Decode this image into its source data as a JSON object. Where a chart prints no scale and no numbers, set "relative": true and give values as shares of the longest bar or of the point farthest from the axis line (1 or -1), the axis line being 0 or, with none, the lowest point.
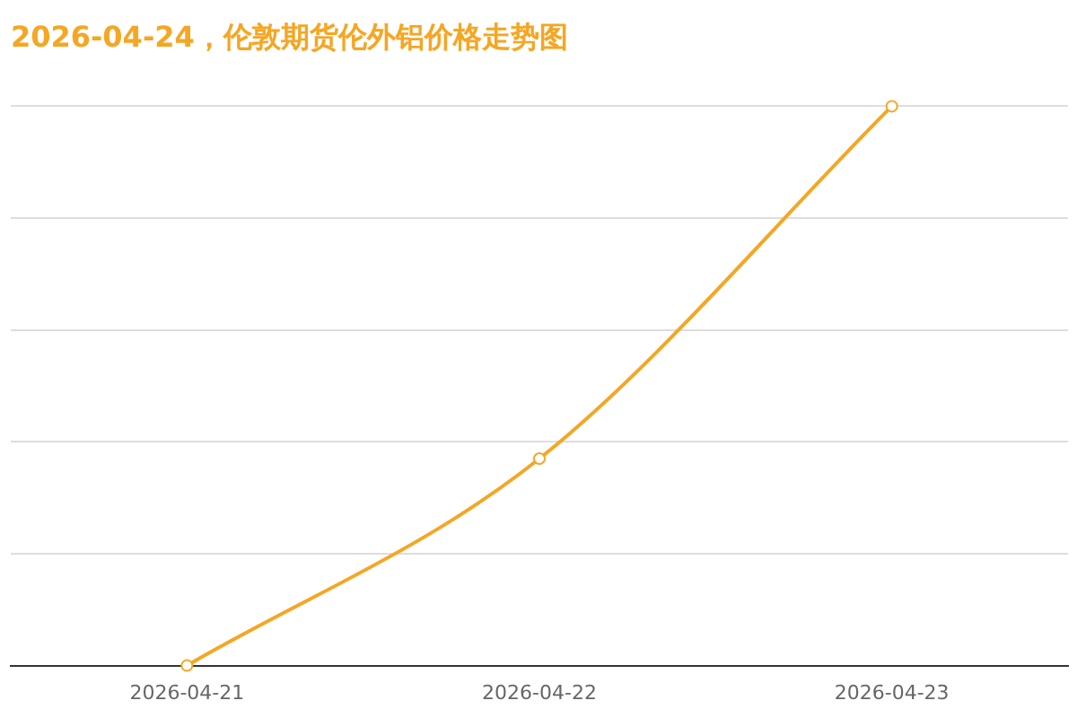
{
  "chart_data": {
    "type": "line",
    "title": "2026-04-24，伦敦期货伦外铝价格走势图",
    "categories": [
      "2026-04-21",
      "2026-04-22",
      "2026-04-23"
    ],
    "series": [
      {
        "color": "#f5a623",
        "values": [
          0,
          0.37,
          1
        ]
      }
    ],
    "relative": true,
    "grid": "y",
    "marker": "circle",
    "line_style": "solid",
    "legend": false
  }
}
